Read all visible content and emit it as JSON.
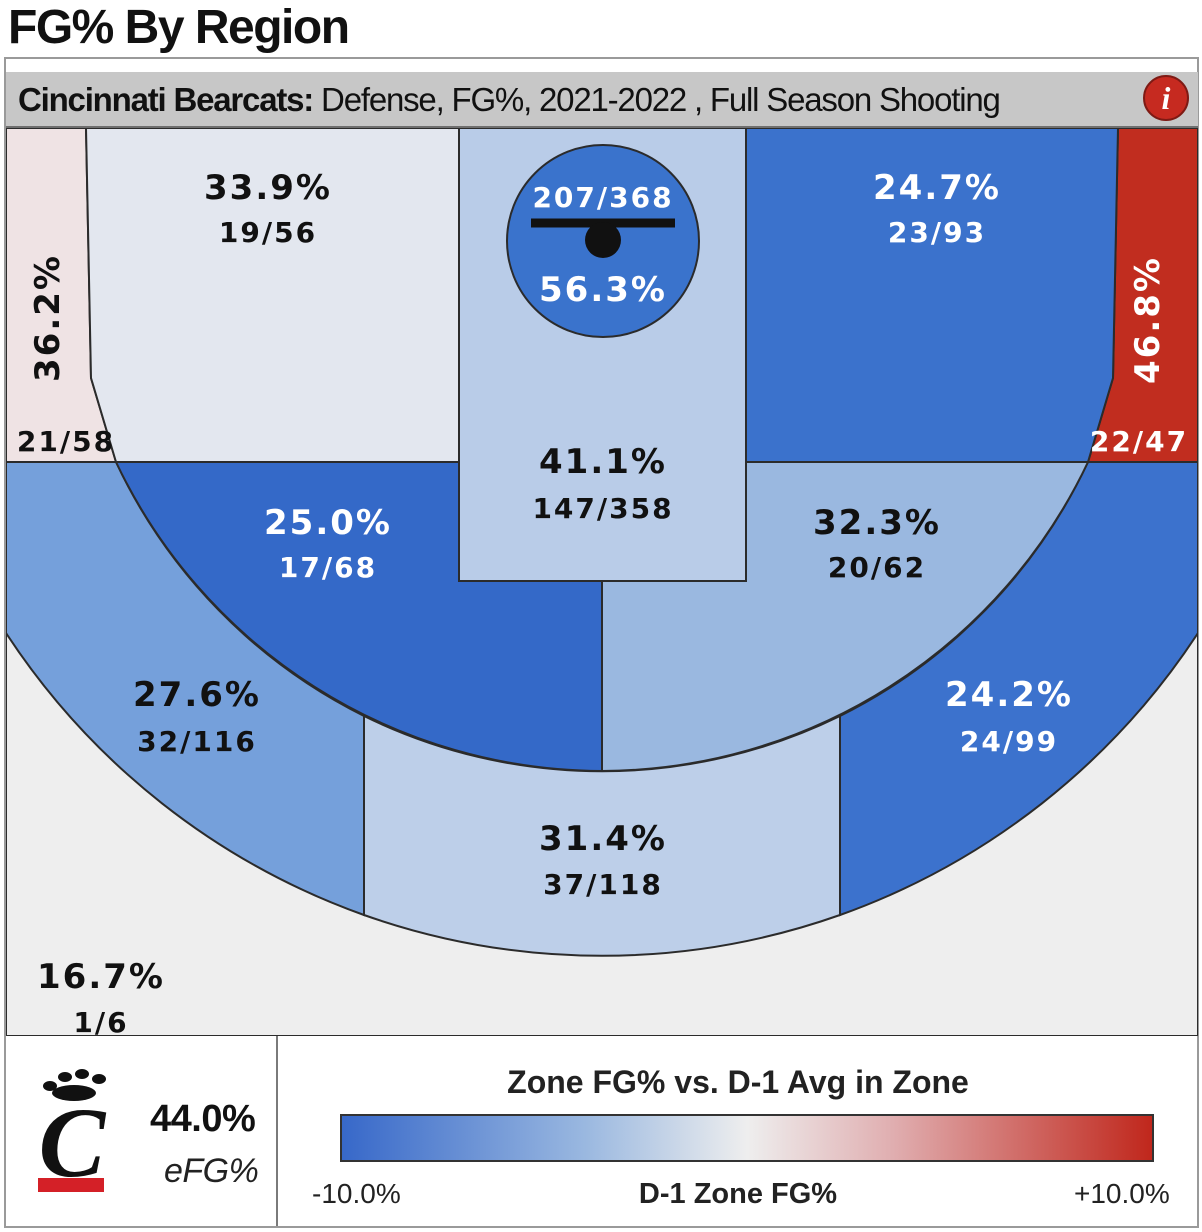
{
  "title": "FG% By Region",
  "header": {
    "team": "Cincinnati Bearcats:",
    "details": " Defense, FG%, 2021-2022 , Full Season Shooting",
    "info_icon": "info-icon"
  },
  "colors": {
    "cold": "#3768c9",
    "neutral": "#eeeeee",
    "hot": "#c0271c",
    "outline": "#2b2b2b"
  },
  "chart_data": {
    "type": "heatmap",
    "zones": [
      {
        "id": "rim",
        "pct": "56.3%",
        "made": 207,
        "att": 368,
        "count": "207/368",
        "color": "#3a73cc",
        "text": "#ffffff"
      },
      {
        "id": "paint",
        "pct": "41.1%",
        "made": 147,
        "att": 358,
        "count": "147/358",
        "color": "#b9cce8",
        "text": "#111111"
      },
      {
        "id": "left-baseline-mid",
        "pct": "33.9%",
        "made": 19,
        "att": 56,
        "count": "19/56",
        "color": "#e3e7ef",
        "text": "#111111"
      },
      {
        "id": "right-baseline-mid",
        "pct": "24.7%",
        "made": 23,
        "att": 93,
        "count": "23/93",
        "color": "#3b72cc",
        "text": "#ffffff"
      },
      {
        "id": "left-wing-mid",
        "pct": "25.0%",
        "made": 17,
        "att": 68,
        "count": "17/68",
        "color": "#3469c8",
        "text": "#ffffff"
      },
      {
        "id": "right-wing-mid",
        "pct": "32.3%",
        "made": 20,
        "att": 62,
        "count": "20/62",
        "color": "#9ab8e0",
        "text": "#111111"
      },
      {
        "id": "left-corner-three",
        "pct": "36.2%",
        "made": 21,
        "att": 58,
        "count": "21/58",
        "color": "#efe3e4",
        "text": "#111111"
      },
      {
        "id": "right-corner-three",
        "pct": "46.8%",
        "made": 22,
        "att": 47,
        "count": "22/47",
        "color": "#c12d1f",
        "text": "#ffffff"
      },
      {
        "id": "left-wing-three",
        "pct": "27.6%",
        "made": 32,
        "att": 116,
        "count": "32/116",
        "color": "#75a0db",
        "text": "#111111"
      },
      {
        "id": "top-three",
        "pct": "31.4%",
        "made": 37,
        "att": 118,
        "count": "37/118",
        "color": "#bdcfe9",
        "text": "#111111"
      },
      {
        "id": "right-wing-three",
        "pct": "24.2%",
        "made": 24,
        "att": 99,
        "count": "24/99",
        "color": "#3c72cd",
        "text": "#ffffff"
      },
      {
        "id": "backcourt",
        "pct": "16.7%",
        "made": 1,
        "att": 6,
        "count": "1/6",
        "color": "#eeeeee",
        "text": "#111111"
      }
    ],
    "legend": {
      "title": "Zone FG% vs. D-1 Avg in Zone",
      "min": "-10.0%",
      "mid": "D-1 Zone FG%",
      "max": "+10.0%"
    },
    "summary": {
      "value": "44.0%",
      "label": "eFG%"
    }
  }
}
